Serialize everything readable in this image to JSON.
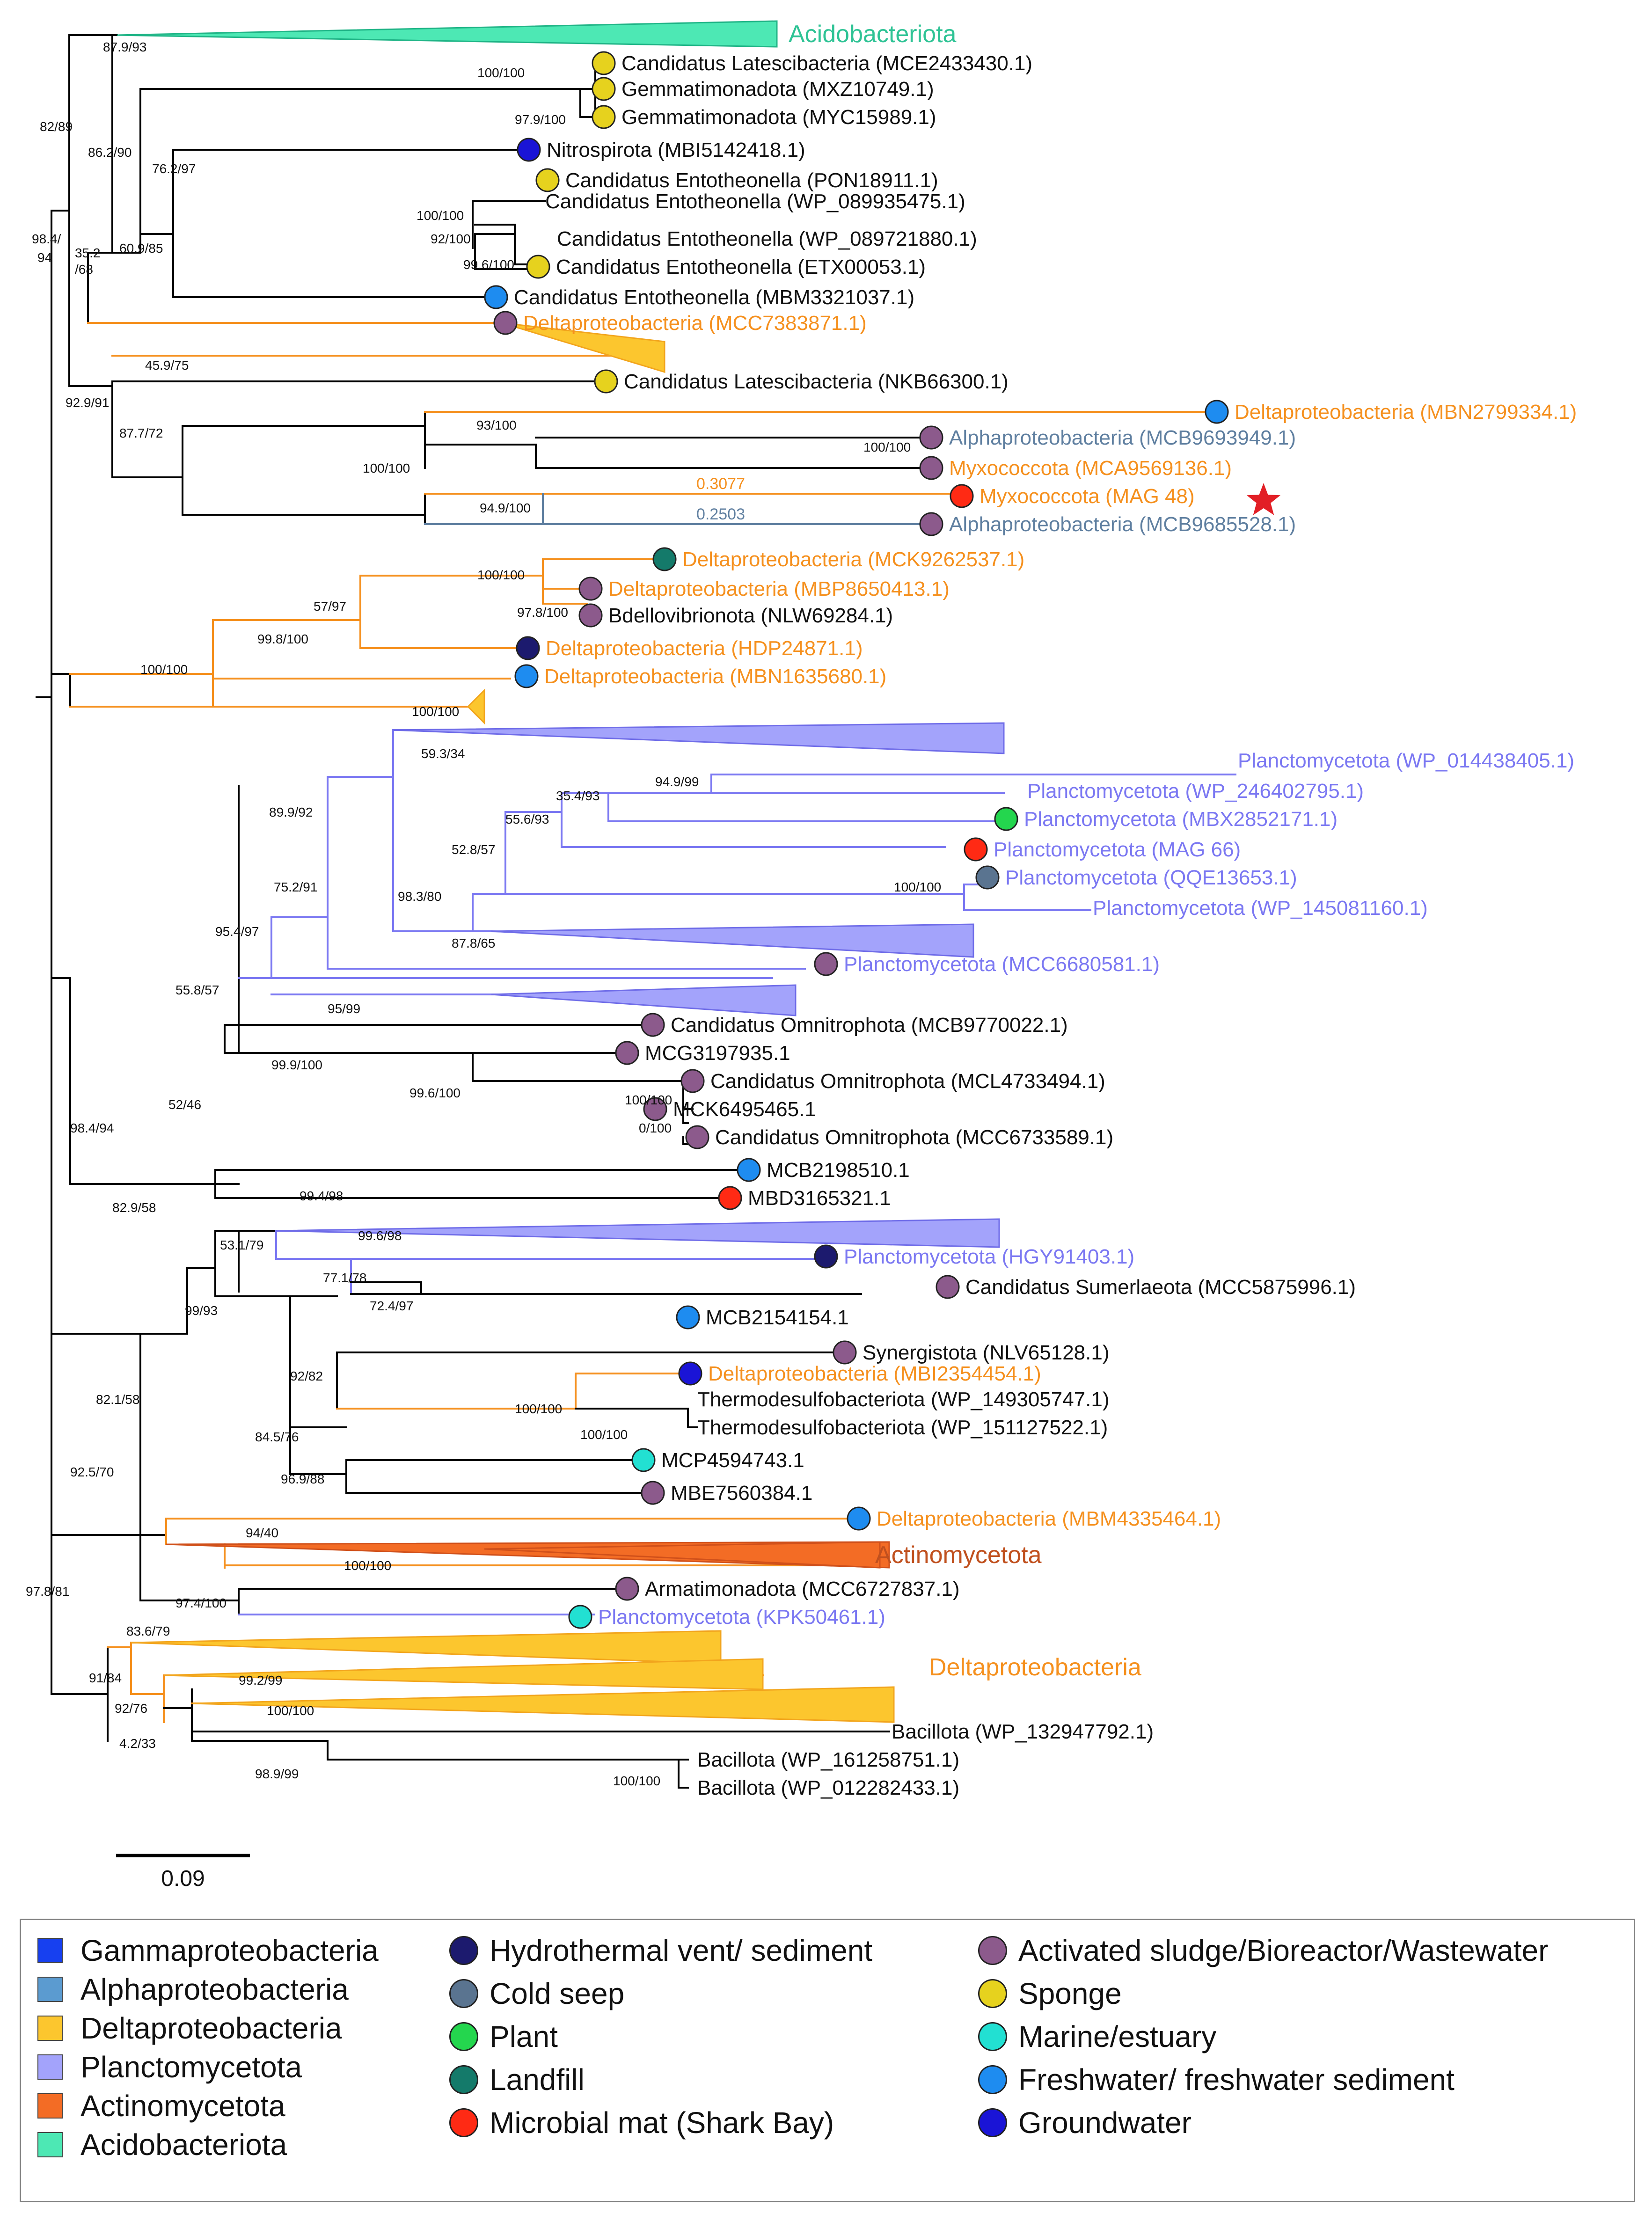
{
  "colors": {
    "branch": "#000000",
    "delta": "#f5901e",
    "delta_fill": "#fcc62e",
    "plancto": "#7b78f2",
    "plancto_fill": "#a3a3fb",
    "alpha": "#5f7fa0",
    "acido": "#33d9a6",
    "actino": "#e8571c",
    "actino_text": "#c0501e",
    "star": "#e21f26"
  },
  "legend": {
    "taxa": [
      {
        "label": "Gammaproteobacteria",
        "color": "#1740f0"
      },
      {
        "label": "Alphaproteobacteria",
        "color": "#5b9bd0"
      },
      {
        "label": "Deltaproteobacteria",
        "color": "#fcc62e"
      },
      {
        "label": "Planctomycetota",
        "color": "#a3a3fb"
      },
      {
        "label": "Actinomycetota",
        "color": "#f36c25"
      },
      {
        "label": "Acidobacteriota",
        "color": "#4de8b4"
      }
    ],
    "habitats_a": [
      {
        "label": "Hydrothermal vent/ sediment",
        "color": "#1c1a6e"
      },
      {
        "label": "Cold seep",
        "color": "#5a7490"
      },
      {
        "label": "Plant",
        "color": "#24d64e"
      },
      {
        "label": "Landfill",
        "color": "#147a6a"
      },
      {
        "label": "Microbial mat (Shark Bay)",
        "color": "#ff2a14"
      }
    ],
    "habitats_b": [
      {
        "label": "Activated sludge/Bioreactor/Wastewater",
        "color": "#8c5a8c"
      },
      {
        "label": "Sponge",
        "color": "#e6d21e"
      },
      {
        "label": "Marine/estuary",
        "color": "#22e0d2"
      },
      {
        "label": "Freshwater/ freshwater sediment",
        "color": "#1e8cf0"
      },
      {
        "label": "Groundwater",
        "color": "#1a14d6"
      }
    ]
  },
  "scale_bar": {
    "label": "0.09"
  },
  "tree": {
    "clades": [
      {
        "label": "Acidobacteriota",
        "group": "acido"
      },
      {
        "label": "Actinomycetota",
        "group": "actino"
      },
      {
        "label": "Deltaproteobacteria",
        "group": "delta"
      }
    ],
    "branch_lengths": [
      "0.3077",
      "0.2503"
    ],
    "tips": [
      {
        "label": "Candidatus Latescibacteria (MCE2433430.1)",
        "group": "black",
        "habitat": "sponge"
      },
      {
        "label": "Gemmatimonadota (MXZ10749.1)",
        "group": "black",
        "habitat": "sponge"
      },
      {
        "label": "Gemmatimonadota (MYC15989.1)",
        "group": "black",
        "habitat": "sponge"
      },
      {
        "label": "Nitrospirota (MBI5142418.1)",
        "group": "black",
        "habitat": "groundwater"
      },
      {
        "label": "Candidatus Entotheonella (PON18911.1)",
        "group": "black",
        "habitat": "sponge"
      },
      {
        "label": "Candidatus Entotheonella (WP_089935475.1)",
        "group": "black",
        "habitat": ""
      },
      {
        "label": "Candidatus Entotheonella (WP_089721880.1)",
        "group": "black",
        "habitat": ""
      },
      {
        "label": "Candidatus Entotheonella (ETX00053.1)",
        "group": "black",
        "habitat": "sponge"
      },
      {
        "label": "Candidatus Entotheonella (MBM3321037.1)",
        "group": "black",
        "habitat": "freshwater"
      },
      {
        "label": "Deltaproteobacteria (MCC7383871.1)",
        "group": "delta",
        "habitat": "sludge"
      },
      {
        "label": "Candidatus Latescibacteria (NKB66300.1)",
        "group": "black",
        "habitat": "sponge"
      },
      {
        "label": "Deltaproteobacteria (MBN2799334.1)",
        "group": "delta",
        "habitat": "freshwater"
      },
      {
        "label": "Alphaproteobacteria (MCB9693949.1)",
        "group": "alpha",
        "habitat": "sludge"
      },
      {
        "label": "Myxococcota (MCA9569136.1)",
        "group": "delta",
        "habitat": "sludge"
      },
      {
        "label": "Myxococcota (MAG 48)",
        "group": "delta",
        "habitat": "mat"
      },
      {
        "label": "Alphaproteobacteria (MCB9685528.1)",
        "group": "alpha",
        "habitat": "sludge"
      },
      {
        "label": "Deltaproteobacteria (MCK9262537.1)",
        "group": "delta",
        "habitat": "landfill"
      },
      {
        "label": "Deltaproteobacteria (MBP8650413.1)",
        "group": "delta",
        "habitat": "sludge"
      },
      {
        "label": "Bdellovibrionota (NLW69284.1)",
        "group": "black",
        "habitat": "sludge"
      },
      {
        "label": "Deltaproteobacteria (HDP24871.1)",
        "group": "delta",
        "habitat": "hydro"
      },
      {
        "label": "Deltaproteobacteria (MBN1635680.1)",
        "group": "delta",
        "habitat": "freshwater"
      },
      {
        "label": "Planctomycetota (WP_014438405.1)",
        "group": "plancto",
        "habitat": ""
      },
      {
        "label": "Planctomycetota (WP_246402795.1)",
        "group": "plancto",
        "habitat": ""
      },
      {
        "label": "Planctomycetota (MBX2852171.1)",
        "group": "plancto",
        "habitat": "plant"
      },
      {
        "label": "Planctomycetota (MAG 66)",
        "group": "plancto",
        "habitat": "mat"
      },
      {
        "label": "Planctomycetota (QQE13653.1)",
        "group": "plancto",
        "habitat": "seep"
      },
      {
        "label": "Planctomycetota (WP_145081160.1)",
        "group": "plancto",
        "habitat": ""
      },
      {
        "label": "Planctomycetota  (MCC6680581.1)",
        "group": "plancto",
        "habitat": "sludge"
      },
      {
        "label": "Candidatus Omnitrophota (MCB9770022.1)",
        "group": "black",
        "habitat": "sludge"
      },
      {
        "label": "MCG3197935.1",
        "group": "black",
        "habitat": "sludge"
      },
      {
        "label": "Candidatus Omnitrophota (MCL4733494.1)",
        "group": "black",
        "habitat": "sludge"
      },
      {
        "label": "MCK6495465.1",
        "group": "black",
        "habitat": "sludge"
      },
      {
        "label": "Candidatus Omnitrophota (MCC6733589.1)",
        "group": "black",
        "habitat": "sludge"
      },
      {
        "label": "MCB2198510.1",
        "group": "black",
        "habitat": "freshwater"
      },
      {
        "label": "MBD3165321.1",
        "group": "black",
        "habitat": "mat"
      },
      {
        "label": "Planctomycetota (HGY91403.1)",
        "group": "plancto",
        "habitat": "hydro"
      },
      {
        "label": "Candidatus Sumerlaeota (MCC5875996.1)",
        "group": "black",
        "habitat": "sludge"
      },
      {
        "label": "MCB2154154.1",
        "group": "black",
        "habitat": "freshwater"
      },
      {
        "label": "Synergistota (NLV65128.1)",
        "group": "black",
        "habitat": "sludge"
      },
      {
        "label": "Deltaproteobacteria (MBI2354454.1)",
        "group": "delta",
        "habitat": "groundwater"
      },
      {
        "label": "Thermodesulfobacteriota (WP_149305747.1)",
        "group": "black",
        "habitat": ""
      },
      {
        "label": "Thermodesulfobacteriota (WP_151127522.1)",
        "group": "black",
        "habitat": ""
      },
      {
        "label": "MCP4594743.1",
        "group": "black",
        "habitat": "marine"
      },
      {
        "label": "MBE7560384.1",
        "group": "black",
        "habitat": "sludge"
      },
      {
        "label": "Deltaproteobacteria (MBM4335464.1)",
        "group": "delta",
        "habitat": "freshwater"
      },
      {
        "label": "Armatimonadota (MCC6727837.1)",
        "group": "black",
        "habitat": "sludge"
      },
      {
        "label": "Planctomycetota (KPK50461.1)",
        "group": "plancto",
        "habitat": "marine"
      },
      {
        "label": "Bacillota (WP_132947792.1)",
        "group": "black",
        "habitat": ""
      },
      {
        "label": "Bacillota (WP_161258751.1)",
        "group": "black",
        "habitat": ""
      },
      {
        "label": "Bacillota (WP_012282433.1)",
        "group": "black",
        "habitat": ""
      }
    ],
    "supports": [
      "87.9/93",
      "82/89",
      "98.4/",
      "94",
      "100/100",
      "97.9/100",
      "86.2/90",
      "76.2/97",
      "35.2",
      "/68",
      "60.9/85",
      "100/100",
      "92/100",
      "99.6/100",
      "45.9/75",
      "92.9/91",
      "87.7/72",
      "93/100",
      "100/100",
      "100/100",
      "94.9/100",
      "100/100",
      "97.8/100",
      "57/97",
      "99.8/100",
      "100/100",
      "100/100",
      "59.3/34",
      "94.9/99",
      "35.4/93",
      "89.9/92",
      "55.6/93",
      "52.8/57",
      "75.2/91",
      "98.3/80",
      "100/100",
      "87.8/65",
      "95.4/97",
      "95/99",
      "55.8/57",
      "99.9/100",
      "99.6/100",
      "100/100",
      "0/100",
      "52/46",
      "98.4/94",
      "99.4/98",
      "82.9/58",
      "53.1/79",
      "99.6/98",
      "77.1/78",
      "72.4/97",
      "99/93",
      "92/82",
      "100/100",
      "100/100",
      "84.5/76",
      "96.9/88",
      "82.1/58",
      "92.5/70",
      "94/40",
      "100/100",
      "97.4/100",
      "97.8/81",
      "83.6/79",
      "91/84",
      "99.2/99",
      "92/76",
      "100/100",
      "4.2/33",
      "98.9/99",
      "100/100"
    ]
  }
}
